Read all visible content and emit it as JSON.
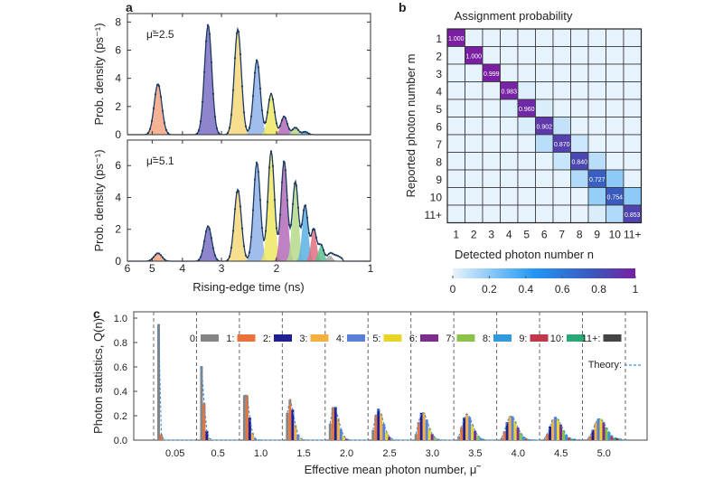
{
  "panel_labels": {
    "a": "a",
    "b": "b",
    "c": "c"
  },
  "chart_data": [
    {
      "panel": "a-top",
      "type": "area",
      "annotation": "μ̃=2.5",
      "ylabel": "Prob. density (ps⁻¹)",
      "x_scale": "log",
      "x_reversed": true,
      "xlim": [
        6,
        1
      ],
      "ylim": [
        0,
        8.6
      ],
      "xticks": [
        6,
        5,
        4,
        3,
        2,
        1
      ],
      "yticks": [
        "0",
        "2",
        "4",
        "6",
        "8"
      ],
      "fit_points": true,
      "peaks": [
        {
          "n": 1,
          "time_ns": 4.79,
          "density": 3.6,
          "color": "#f4a582"
        },
        {
          "n": 2,
          "time_ns": 3.31,
          "density": 7.8,
          "color": "#7b6fc6"
        },
        {
          "n": 3,
          "time_ns": 2.66,
          "density": 7.5,
          "color": "#f6d77a"
        },
        {
          "n": 4,
          "time_ns": 2.31,
          "density": 5.3,
          "color": "#8fb1e8"
        },
        {
          "n": 5,
          "time_ns": 2.08,
          "density": 2.9,
          "color": "#f0e661"
        },
        {
          "n": 6,
          "time_ns": 1.89,
          "density": 1.3,
          "color": "#b36bb8"
        },
        {
          "n": 7,
          "time_ns": 1.74,
          "density": 0.5,
          "color": "#b5d98a"
        },
        {
          "n": 8,
          "time_ns": 1.62,
          "density": 0.2,
          "color": "#5ab0e0"
        }
      ]
    },
    {
      "panel": "a-bottom",
      "type": "area",
      "annotation": "μ̃=5.1",
      "ylabel": "Prob. density (ps⁻¹)",
      "xlabel": "Rising-edge time (ns)",
      "x_scale": "log",
      "x_reversed": true,
      "xlim": [
        6,
        1
      ],
      "ylim": [
        0,
        7.6
      ],
      "xticks": [
        "6",
        "5",
        "4",
        "3",
        "2",
        "1"
      ],
      "yticks": [
        "0",
        "2",
        "4",
        "6"
      ],
      "fit_points": true,
      "peaks": [
        {
          "n": 1,
          "time_ns": 4.79,
          "density": 0.5,
          "color": "#f4a582"
        },
        {
          "n": 2,
          "time_ns": 3.31,
          "density": 2.2,
          "color": "#7b6fc6"
        },
        {
          "n": 3,
          "time_ns": 2.66,
          "density": 4.5,
          "color": "#f6d77a"
        },
        {
          "n": 4,
          "time_ns": 2.31,
          "density": 6.2,
          "color": "#8fb1e8"
        },
        {
          "n": 5,
          "time_ns": 2.08,
          "density": 6.9,
          "color": "#f0e661"
        },
        {
          "n": 6,
          "time_ns": 1.89,
          "density": 6.3,
          "color": "#b36bb8"
        },
        {
          "n": 7,
          "time_ns": 1.74,
          "density": 5.0,
          "color": "#b5d98a"
        },
        {
          "n": 8,
          "time_ns": 1.62,
          "density": 3.5,
          "color": "#5ab0e0"
        },
        {
          "n": 9,
          "time_ns": 1.52,
          "density": 2.0,
          "color": "#e07080"
        },
        {
          "n": 10,
          "time_ns": 1.44,
          "density": 1.0,
          "color": "#5cc08e"
        },
        {
          "n": 11,
          "time_ns": 1.35,
          "density": 0.35,
          "color": "#a8a8a8"
        }
      ]
    },
    {
      "panel": "b",
      "type": "heatmap",
      "title": "Assignment probability",
      "xlabel": "Detected photon number n",
      "ylabel": "Reported photon number m",
      "xticks": [
        "1",
        "2",
        "3",
        "4",
        "5",
        "6",
        "7",
        "8",
        "9",
        "10",
        "11+"
      ],
      "yticks": [
        "1",
        "2",
        "3",
        "4",
        "5",
        "6",
        "7",
        "8",
        "9",
        "10",
        "11+"
      ],
      "cell_labels": [
        "1.000",
        "1.000",
        "0.999",
        "0.983",
        "0.960",
        "0.902",
        "0.870",
        "0.840",
        "0.727",
        "0.754",
        "0.853"
      ],
      "matrix": [
        [
          1.0,
          0,
          0,
          0,
          0,
          0,
          0,
          0,
          0,
          0,
          0
        ],
        [
          0,
          1.0,
          0,
          0,
          0,
          0,
          0,
          0,
          0,
          0,
          0
        ],
        [
          0,
          0,
          0.999,
          0,
          0,
          0,
          0,
          0,
          0,
          0,
          0
        ],
        [
          0,
          0,
          0,
          0.983,
          0.02,
          0,
          0,
          0,
          0,
          0,
          0
        ],
        [
          0,
          0,
          0,
          0.02,
          0.96,
          0.03,
          0,
          0,
          0,
          0,
          0
        ],
        [
          0,
          0,
          0,
          0,
          0.03,
          0.902,
          0.08,
          0,
          0,
          0,
          0
        ],
        [
          0,
          0,
          0,
          0,
          0,
          0.1,
          0.87,
          0.06,
          0,
          0,
          0
        ],
        [
          0,
          0,
          0,
          0,
          0,
          0,
          0.07,
          0.84,
          0.1,
          0,
          0
        ],
        [
          0,
          0,
          0,
          0,
          0,
          0,
          0,
          0.12,
          0.727,
          0.2,
          0
        ],
        [
          0,
          0,
          0,
          0,
          0,
          0,
          0,
          0,
          0.18,
          0.754,
          0.2
        ],
        [
          0,
          0,
          0,
          0,
          0,
          0,
          0,
          0,
          0.03,
          0.12,
          0.853
        ]
      ],
      "colorbar": {
        "range": [
          0,
          1
        ],
        "ticks": [
          "0",
          "0.2",
          "0.4",
          "0.6",
          "0.8",
          "1"
        ],
        "colors": [
          "#e6f3fc",
          "#2196f3",
          "#3f51b5",
          "#7b1fa2"
        ]
      }
    },
    {
      "panel": "c",
      "type": "bar",
      "xlabel": "Effective mean photon number, μ̃",
      "ylabel": "Photon statistics, Q(n)",
      "ylim": [
        0,
        1.0
      ],
      "yticks": [
        "0.0",
        "0.2",
        "0.4",
        "0.6",
        "0.8",
        "1.0"
      ],
      "categories": [
        "0.05",
        "0.5",
        "1.0",
        "1.5",
        "2.0",
        "2.5",
        "3.0",
        "3.5",
        "4.0",
        "4.5",
        "5.0"
      ],
      "legend_position": "top",
      "series": [
        {
          "name": "0:",
          "color": "#858585"
        },
        {
          "name": "1:",
          "color": "#e8743b"
        },
        {
          "name": "2:",
          "color": "#1f1f8f"
        },
        {
          "name": "3:",
          "color": "#f5b041"
        },
        {
          "name": "4:",
          "color": "#5a7fd6"
        },
        {
          "name": "5:",
          "color": "#e8d52a"
        },
        {
          "name": "6:",
          "color": "#7b2d8e"
        },
        {
          "name": "7:",
          "color": "#8bc34a"
        },
        {
          "name": "8:",
          "color": "#3399dd"
        },
        {
          "name": "9:",
          "color": "#c0394b"
        },
        {
          "name": "10:",
          "color": "#2aa876"
        },
        {
          "name": "11+:",
          "color": "#444444"
        }
      ],
      "values": [
        [
          0.951,
          0.048,
          0.001,
          0,
          0,
          0,
          0,
          0,
          0,
          0,
          0,
          0
        ],
        [
          0.607,
          0.303,
          0.076,
          0.013,
          0.002,
          0,
          0,
          0,
          0,
          0,
          0,
          0
        ],
        [
          0.368,
          0.368,
          0.184,
          0.061,
          0.015,
          0.003,
          0.001,
          0,
          0,
          0,
          0,
          0
        ],
        [
          0.223,
          0.335,
          0.251,
          0.126,
          0.047,
          0.014,
          0.004,
          0.001,
          0,
          0,
          0,
          0
        ],
        [
          0.135,
          0.271,
          0.271,
          0.18,
          0.09,
          0.036,
          0.012,
          0.003,
          0.001,
          0,
          0,
          0
        ],
        [
          0.082,
          0.205,
          0.257,
          0.214,
          0.134,
          0.067,
          0.028,
          0.01,
          0.003,
          0.001,
          0,
          0
        ],
        [
          0.05,
          0.149,
          0.224,
          0.224,
          0.168,
          0.101,
          0.05,
          0.022,
          0.008,
          0.003,
          0.001,
          0
        ],
        [
          0.03,
          0.106,
          0.185,
          0.216,
          0.189,
          0.132,
          0.077,
          0.039,
          0.017,
          0.007,
          0.002,
          0.001
        ],
        [
          0.018,
          0.073,
          0.147,
          0.195,
          0.195,
          0.156,
          0.104,
          0.06,
          0.03,
          0.013,
          0.005,
          0.002
        ],
        [
          0.011,
          0.05,
          0.112,
          0.169,
          0.19,
          0.171,
          0.128,
          0.082,
          0.046,
          0.023,
          0.01,
          0.008
        ],
        [
          0.007,
          0.034,
          0.084,
          0.14,
          0.175,
          0.175,
          0.146,
          0.104,
          0.065,
          0.036,
          0.018,
          0.016
        ]
      ],
      "theory": {
        "label": "Theory:",
        "color": "#3d8fd8",
        "style": "dashed"
      }
    }
  ]
}
